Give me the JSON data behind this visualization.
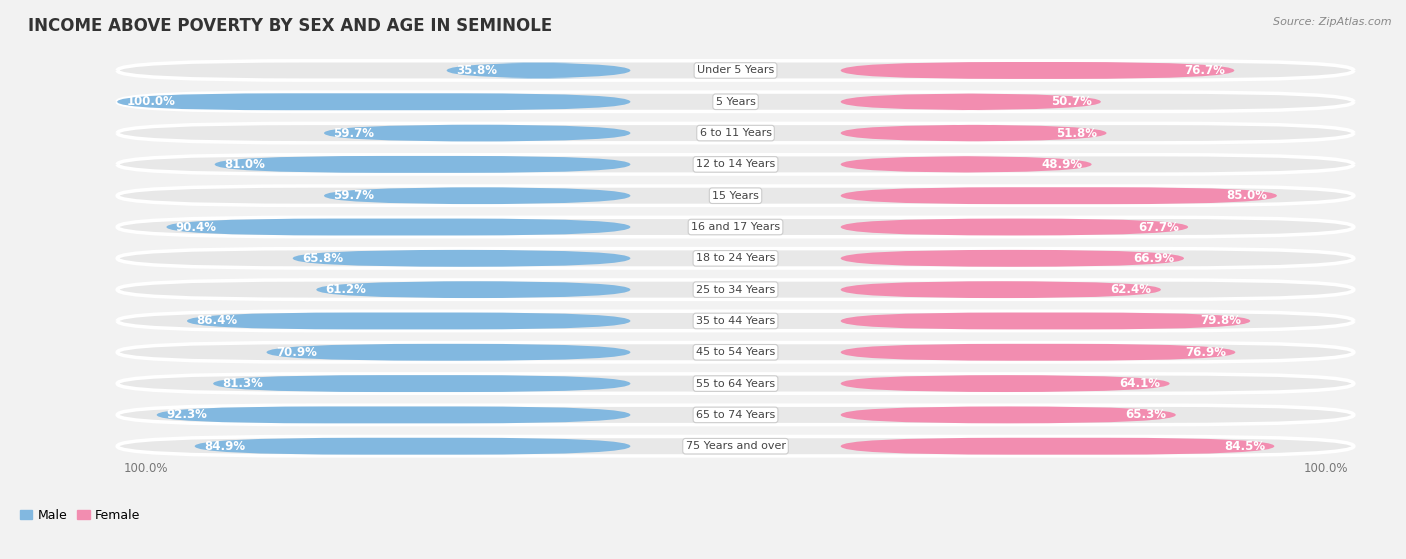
{
  "title": "INCOME ABOVE POVERTY BY SEX AND AGE IN SEMINOLE",
  "source": "Source: ZipAtlas.com",
  "categories": [
    "Under 5 Years",
    "5 Years",
    "6 to 11 Years",
    "12 to 14 Years",
    "15 Years",
    "16 and 17 Years",
    "18 to 24 Years",
    "25 to 34 Years",
    "35 to 44 Years",
    "45 to 54 Years",
    "55 to 64 Years",
    "65 to 74 Years",
    "75 Years and over"
  ],
  "male_values": [
    35.8,
    100.0,
    59.7,
    81.0,
    59.7,
    90.4,
    65.8,
    61.2,
    86.4,
    70.9,
    81.3,
    92.3,
    84.9
  ],
  "female_values": [
    76.7,
    50.7,
    51.8,
    48.9,
    85.0,
    67.7,
    66.9,
    62.4,
    79.8,
    76.9,
    64.1,
    65.3,
    84.5
  ],
  "male_color": "#82b8e0",
  "female_color": "#f28db0",
  "bg_color": "#f2f2f2",
  "bar_bg_color": "#e2e2e2",
  "row_bg_color": "#e8e8e8",
  "title_fontsize": 12,
  "label_fontsize": 8.5,
  "value_fontsize": 8.5,
  "legend_fontsize": 9,
  "bar_height": 0.62,
  "figsize": [
    14.06,
    5.59
  ]
}
